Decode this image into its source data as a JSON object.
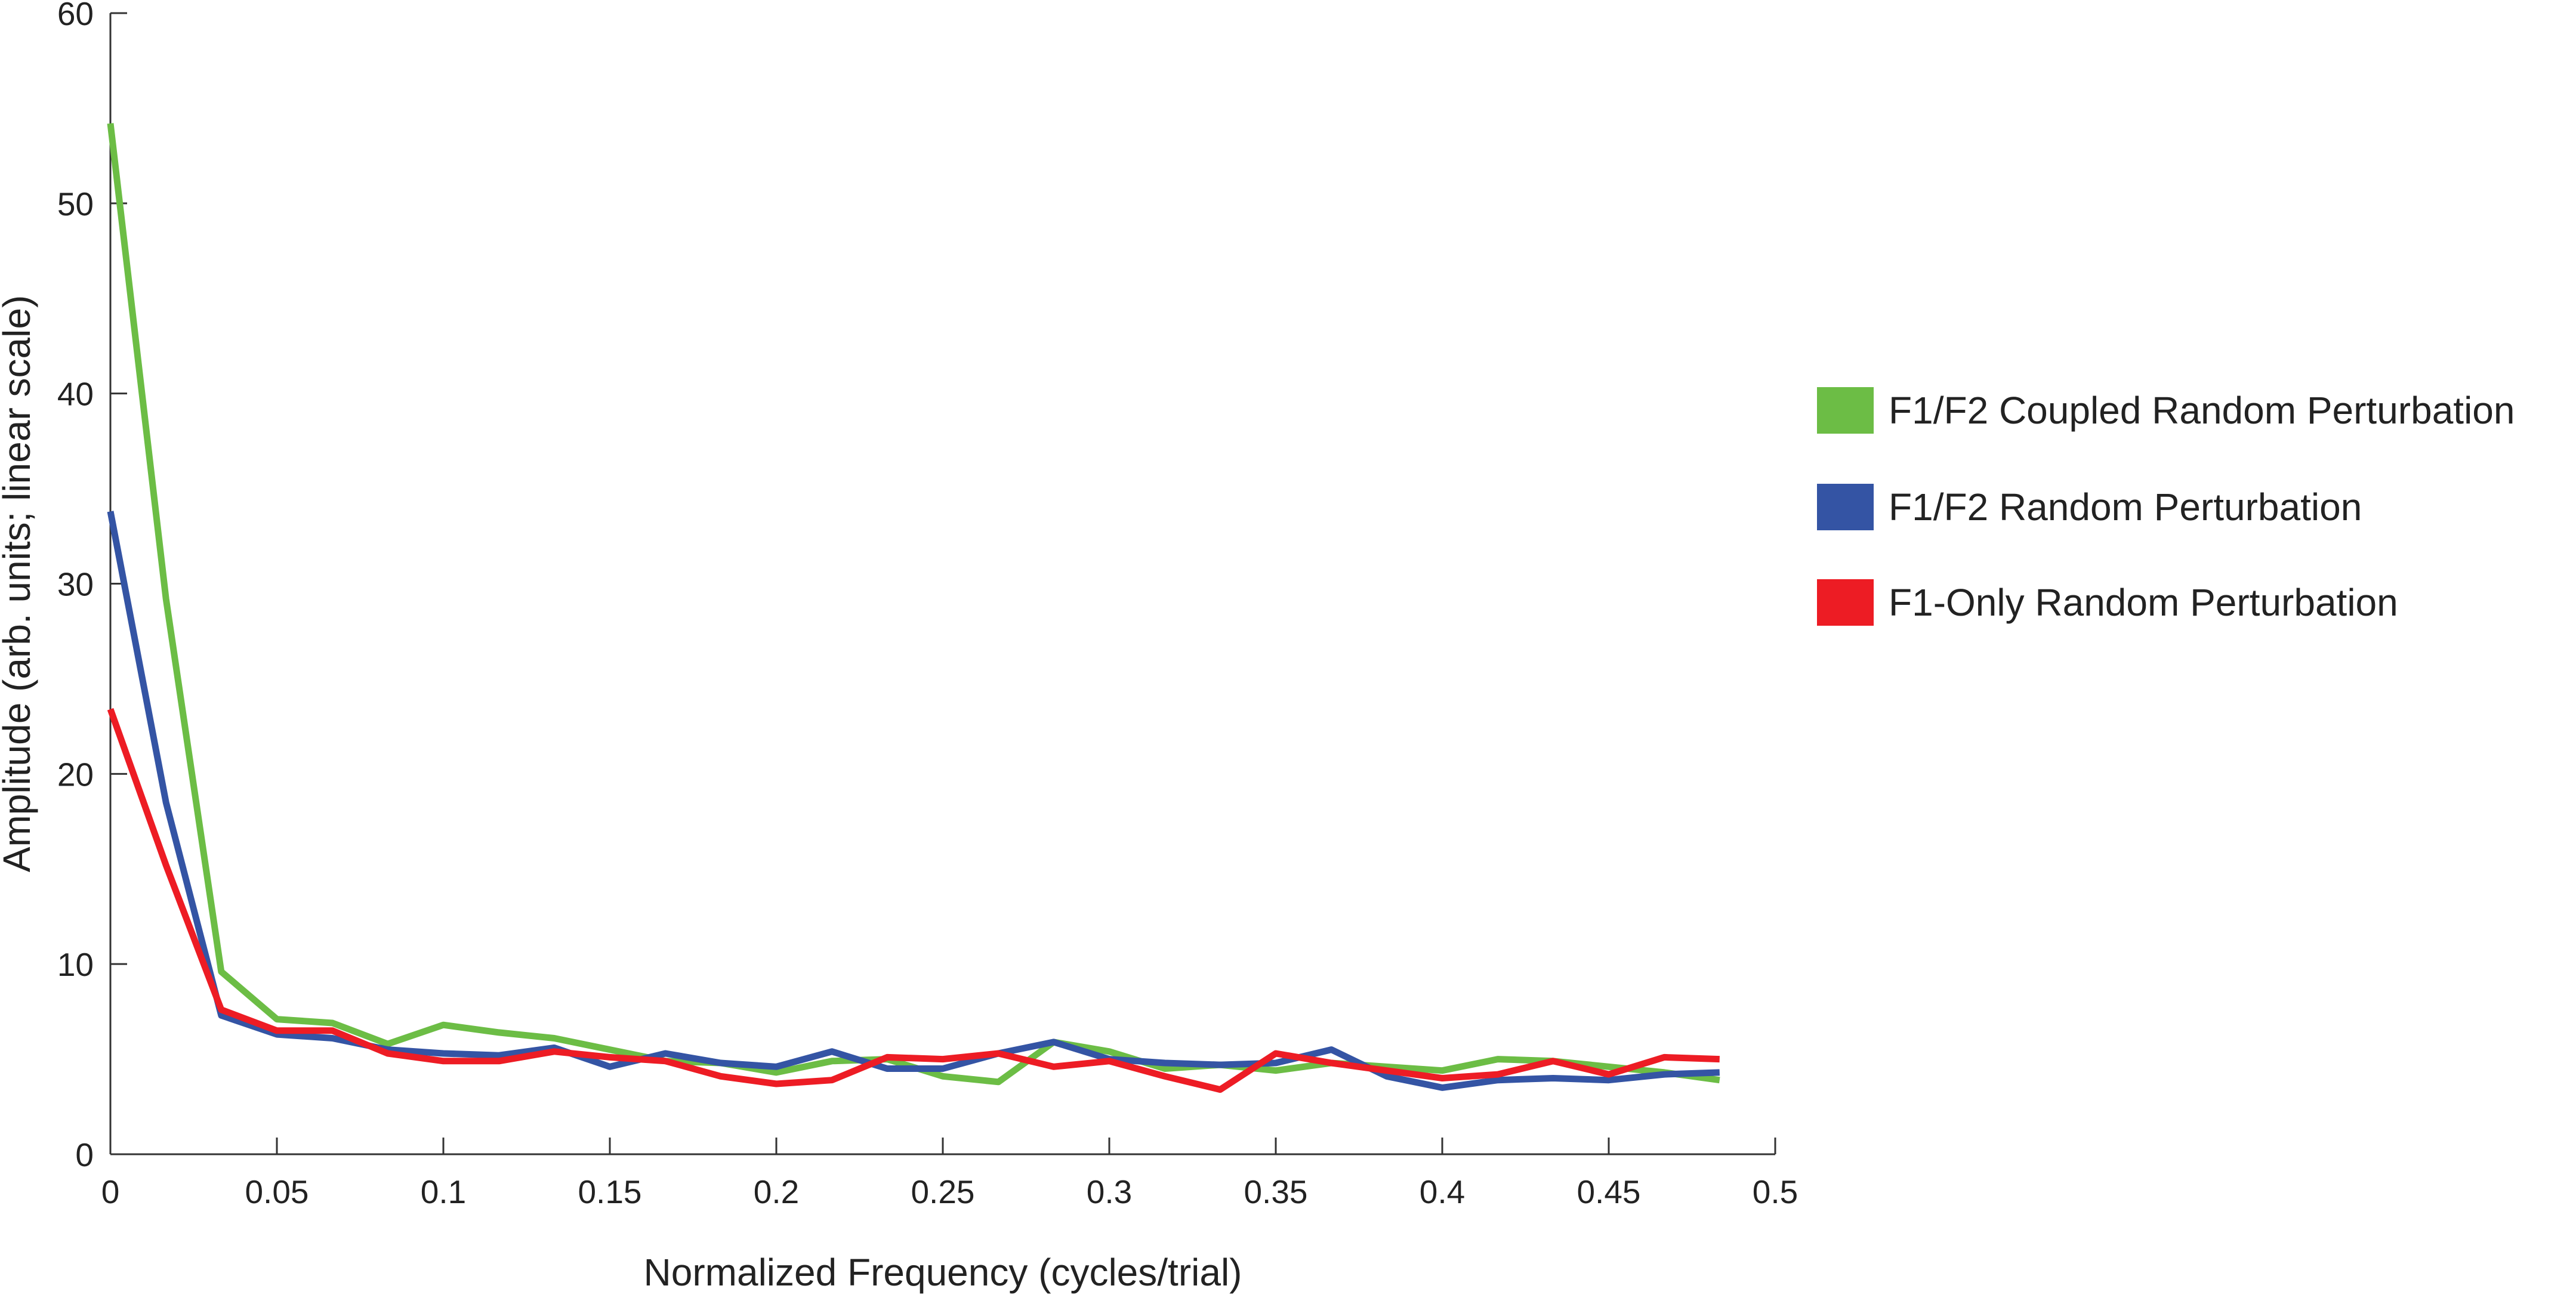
{
  "chart_data": {
    "type": "line",
    "title": "",
    "xlabel": "Normalized Frequency (cycles/trial)",
    "ylabel": "Amplitude (arb. units; linear scale)",
    "xlim": [
      0,
      0.5
    ],
    "ylim": [
      0,
      60
    ],
    "xticks": [
      0,
      0.05,
      0.1,
      0.15,
      0.2,
      0.25,
      0.3,
      0.35,
      0.4,
      0.45,
      0.5
    ],
    "xtick_labels": [
      "0",
      "0.05",
      "0.1",
      "0.15",
      "0.2",
      "0.25",
      "0.3",
      "0.35",
      "0.4",
      "0.45",
      "0.5"
    ],
    "yticks": [
      0,
      10,
      20,
      30,
      40,
      50,
      60
    ],
    "ytick_labels": [
      "0",
      "10",
      "20",
      "30",
      "40",
      "50",
      "60"
    ],
    "grid": false,
    "legend_position": "right",
    "x": [
      0,
      0.0167,
      0.0333,
      0.05,
      0.0667,
      0.0833,
      0.1,
      0.1167,
      0.1333,
      0.15,
      0.1667,
      0.1833,
      0.2,
      0.2167,
      0.2333,
      0.25,
      0.2667,
      0.2833,
      0.3,
      0.3167,
      0.3333,
      0.35,
      0.3667,
      0.3833,
      0.4,
      0.4167,
      0.4333,
      0.45,
      0.4667,
      0.4833
    ],
    "series": [
      {
        "name": "F1/F2 Coupled Random Perturbation",
        "color": "#6cbd45",
        "values": [
          54.2,
          29.2,
          9.6,
          7.1,
          6.9,
          5.8,
          6.8,
          6.4,
          6.1,
          5.5,
          4.9,
          4.8,
          4.3,
          4.9,
          5.0,
          4.1,
          3.8,
          5.9,
          5.4,
          4.5,
          4.7,
          4.4,
          4.8,
          4.6,
          4.4,
          5.0,
          4.9,
          4.6,
          4.3,
          3.9
        ]
      },
      {
        "name": "F1/F2 Random Perturbation",
        "color": "#3454a4",
        "values": [
          33.8,
          18.5,
          7.3,
          6.3,
          6.1,
          5.5,
          5.3,
          5.2,
          5.6,
          4.6,
          5.3,
          4.8,
          4.6,
          5.4,
          4.5,
          4.5,
          5.3,
          5.9,
          5.0,
          4.8,
          4.7,
          4.8,
          5.5,
          4.1,
          3.5,
          3.9,
          4.0,
          3.9,
          4.2,
          4.3
        ]
      },
      {
        "name": "F1-Only Random Perturbation",
        "color": "#ed1c24",
        "values": [
          23.4,
          15.2,
          7.6,
          6.5,
          6.5,
          5.3,
          4.9,
          4.9,
          5.4,
          5.1,
          4.9,
          4.1,
          3.7,
          3.9,
          5.1,
          5.0,
          5.3,
          4.6,
          4.9,
          4.1,
          3.4,
          5.3,
          4.8,
          4.4,
          4.0,
          4.2,
          4.9,
          4.2,
          5.1,
          5.0
        ]
      }
    ]
  }
}
